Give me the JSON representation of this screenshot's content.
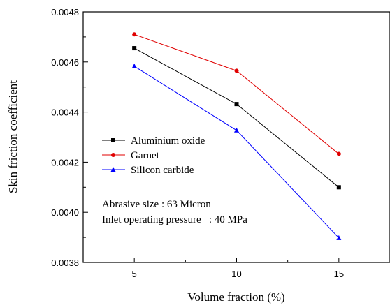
{
  "chart_data": {
    "type": "line",
    "xlabel": "Volume fraction (%)",
    "ylabel": "Skin friction coefficient",
    "xlim": [
      2.5,
      17.5
    ],
    "ylim": [
      0.0038,
      0.0048
    ],
    "x_ticks": [
      5,
      10,
      15
    ],
    "x_tick_labels": [
      "5",
      "10",
      "15"
    ],
    "y_ticks": [
      0.0038,
      0.004,
      0.0042,
      0.0044,
      0.0046,
      0.0048
    ],
    "y_tick_labels": [
      "0.0038",
      "0.0040",
      "0.0042",
      "0.0044",
      "0.0046",
      "0.0048"
    ],
    "grid": false,
    "legend_position": "middle-left",
    "x": [
      5,
      10,
      15
    ],
    "series": [
      {
        "name": "Aluminium oxide",
        "values": [
          0.004655,
          0.004432,
          0.0041
        ],
        "color": "#000000",
        "marker": "square"
      },
      {
        "name": "Garnet",
        "values": [
          0.00471,
          0.004565,
          0.004233
        ],
        "color": "#e00000",
        "marker": "circle"
      },
      {
        "name": "Silicon carbide",
        "values": [
          0.004583,
          0.004327,
          0.003898
        ],
        "color": "#0000ff",
        "marker": "triangle"
      }
    ],
    "annotations": [
      "Abrasive size : 63 Micron",
      "Inlet operating pressure   : 40 MPa"
    ]
  }
}
